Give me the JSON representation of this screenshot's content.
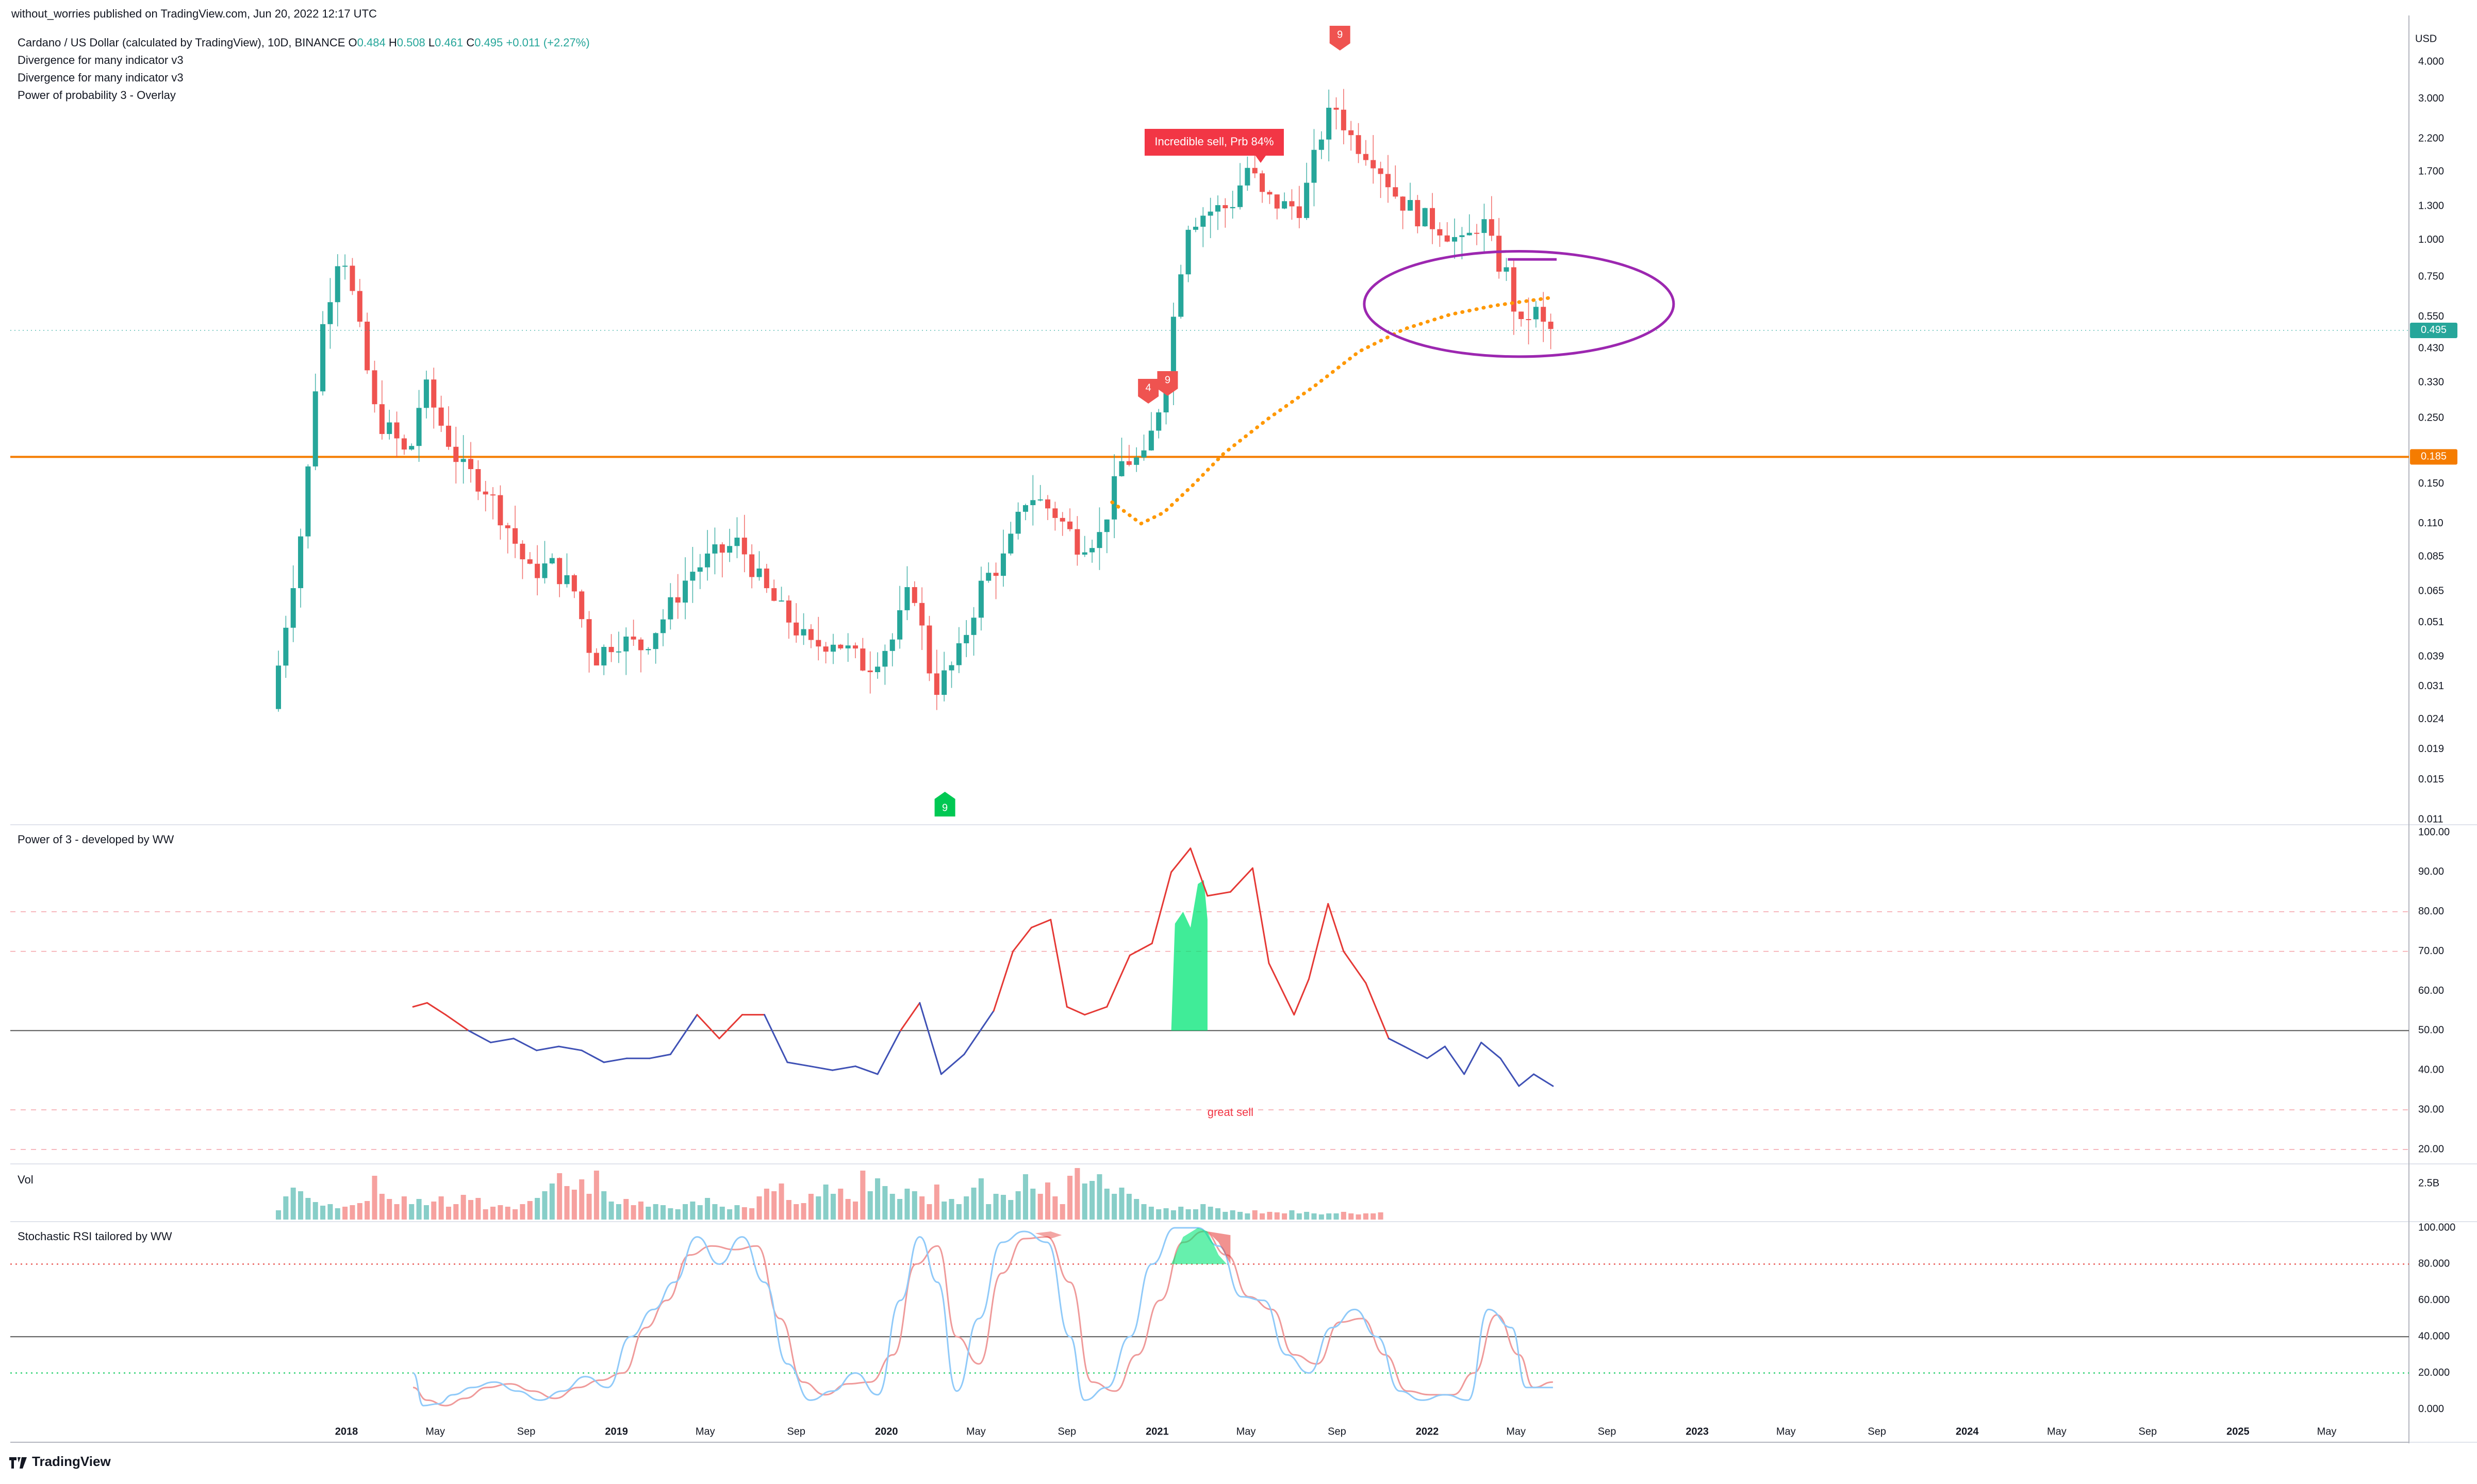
{
  "header": {
    "publisher": "without_worries published on TradingView.com, Jun 20, 2022 12:17 UTC"
  },
  "legend": {
    "symbol": "Cardano / US Dollar (calculated by TradingView), 10D, BINANCE",
    "o_label": "O",
    "o": "0.484",
    "h_label": "H",
    "h": "0.508",
    "l_label": "L",
    "l": "0.461",
    "c_label": "C",
    "c": "0.495",
    "change": "+0.011 (+2.27%)",
    "indicators": [
      "Divergence for many indicator v3",
      "Divergence for many indicator v3",
      "Power of probability 3 - Overlay"
    ]
  },
  "price_axis": {
    "currency": "USD",
    "ticks": [
      "4.000",
      "3.000",
      "2.200",
      "1.700",
      "1.300",
      "1.000",
      "0.750",
      "0.550",
      "0.430",
      "0.330",
      "0.250",
      "0.150",
      "0.110",
      "0.085",
      "0.065",
      "0.051",
      "0.039",
      "0.031",
      "0.024",
      "0.019",
      "0.015",
      "0.011"
    ],
    "last_price": "0.495",
    "level_price": "0.185"
  },
  "annotations": {
    "sell_label": "Incredible sell, Prb 84%",
    "marker_9_top": "9",
    "marker_4": "4",
    "marker_9_mid": "9",
    "marker_9_bottom": "9",
    "great_sell": "great sell"
  },
  "panes": {
    "power_title": "Power of 3 - developed by WW",
    "power_ticks": [
      "100.00",
      "90.00",
      "80.00",
      "70.00",
      "60.00",
      "50.00",
      "40.00",
      "30.00",
      "20.00"
    ],
    "vol_title": "Vol",
    "vol_tick": "2.5B",
    "stoch_title": "Stochastic RSI tailored by WW",
    "stoch_ticks": [
      "100.000",
      "80.000",
      "60.000",
      "40.000",
      "20.000",
      "0.000"
    ]
  },
  "time_axis": {
    "labels": [
      "2018",
      "May",
      "Sep",
      "2019",
      "May",
      "Sep",
      "2020",
      "May",
      "Sep",
      "2021",
      "May",
      "Sep",
      "2022",
      "May",
      "Sep",
      "2023",
      "May",
      "Sep",
      "2024",
      "May",
      "Sep",
      "2025",
      "May"
    ]
  },
  "footer": {
    "brand": "TradingView"
  },
  "colors": {
    "up": "#26a69a",
    "down": "#ef5350",
    "level": "#f57c00",
    "overlay": "#ff9800",
    "circle": "#9c27b0",
    "osc_high": "#e53935",
    "osc_low": "#3f51b5",
    "fill": "#00e676"
  },
  "chart_data": {
    "type": "candlestick",
    "title": "Cardano / US Dollar (calculated by TradingView), 10D, BINANCE",
    "y_scale": "log",
    "ylim": [
      0.011,
      4.0
    ],
    "xlabel": "",
    "ylabel": "USD",
    "x_range": [
      "2017-10-01",
      "2025-07-01"
    ],
    "candle_interval_days": 10,
    "price_path": [
      [
        "2017-10-01",
        0.026
      ],
      [
        "2017-11-15",
        0.12
      ],
      [
        "2017-12-05",
        0.45
      ],
      [
        "2018-01-04",
        1.0
      ],
      [
        "2018-01-25",
        0.55
      ],
      [
        "2018-02-20",
        0.25
      ],
      [
        "2018-03-15",
        0.22
      ],
      [
        "2018-04-05",
        0.18
      ],
      [
        "2018-04-25",
        0.33
      ],
      [
        "2018-05-15",
        0.25
      ],
      [
        "2018-06-15",
        0.17
      ],
      [
        "2018-07-15",
        0.15
      ],
      [
        "2018-08-15",
        0.11
      ],
      [
        "2018-09-15",
        0.075
      ],
      [
        "2018-10-15",
        0.08
      ],
      [
        "2018-11-15",
        0.065
      ],
      [
        "2018-12-10",
        0.038
      ],
      [
        "2019-01-10",
        0.045
      ],
      [
        "2019-02-15",
        0.042
      ],
      [
        "2019-03-20",
        0.055
      ],
      [
        "2019-04-20",
        0.075
      ],
      [
        "2019-05-20",
        0.085
      ],
      [
        "2019-06-25",
        0.095
      ],
      [
        "2019-08-01",
        0.065
      ],
      [
        "2019-09-01",
        0.052
      ],
      [
        "2019-10-01",
        0.042
      ],
      [
        "2019-11-01",
        0.045
      ],
      [
        "2019-12-15",
        0.036
      ],
      [
        "2020-01-20",
        0.045
      ],
      [
        "2020-02-15",
        0.07
      ],
      [
        "2020-03-15",
        0.03
      ],
      [
        "2020-04-15",
        0.038
      ],
      [
        "2020-05-20",
        0.07
      ],
      [
        "2020-06-20",
        0.085
      ],
      [
        "2020-07-20",
        0.14
      ],
      [
        "2020-08-25",
        0.12
      ],
      [
        "2020-09-25",
        0.095
      ],
      [
        "2020-10-25",
        0.1
      ],
      [
        "2020-11-25",
        0.18
      ],
      [
        "2020-12-25",
        0.18
      ],
      [
        "2021-01-20",
        0.32
      ],
      [
        "2021-02-20",
        1.15
      ],
      [
        "2021-03-20",
        1.25
      ],
      [
        "2021-04-20",
        1.3
      ],
      [
        "2021-05-15",
        1.8
      ],
      [
        "2021-06-01",
        1.4
      ],
      [
        "2021-07-01",
        1.3
      ],
      [
        "2021-07-25",
        1.3
      ],
      [
        "2021-08-25",
        2.5
      ],
      [
        "2021-09-10",
        2.8
      ],
      [
        "2021-10-01",
        2.2
      ],
      [
        "2021-11-01",
        1.9
      ],
      [
        "2021-12-01",
        1.4
      ],
      [
        "2022-01-01",
        1.2
      ],
      [
        "2022-02-01",
        1.1
      ],
      [
        "2022-03-01",
        0.95
      ],
      [
        "2022-03-25",
        1.2
      ],
      [
        "2022-04-15",
        0.85
      ],
      [
        "2022-05-01",
        0.75
      ],
      [
        "2022-05-15",
        0.48
      ],
      [
        "2022-05-25",
        0.55
      ],
      [
        "2022-06-05",
        0.58
      ],
      [
        "2022-06-20",
        0.495
      ]
    ],
    "overlay_line": [
      [
        "2020-11-01",
        0.13
      ],
      [
        "2020-12-10",
        0.11
      ],
      [
        "2021-01-10",
        0.12
      ],
      [
        "2021-02-20",
        0.15
      ],
      [
        "2021-04-01",
        0.19
      ],
      [
        "2021-06-01",
        0.25
      ],
      [
        "2021-08-01",
        0.32
      ],
      [
        "2021-10-01",
        0.42
      ],
      [
        "2021-12-01",
        0.5
      ],
      [
        "2022-02-01",
        0.56
      ],
      [
        "2022-04-01",
        0.6
      ],
      [
        "2022-06-20",
        0.64
      ]
    ],
    "horizontal_level": 0.185,
    "power_of_3": {
      "ylim": [
        20,
        100
      ],
      "levels": [
        80,
        70,
        50,
        30,
        20
      ],
      "values": [
        [
          "2018-04-01",
          56
        ],
        [
          "2018-04-20",
          57
        ],
        [
          "2018-05-15",
          54
        ],
        [
          "2018-06-15",
          50
        ],
        [
          "2018-07-15",
          47
        ],
        [
          "2018-08-15",
          48
        ],
        [
          "2018-09-15",
          45
        ],
        [
          "2018-10-15",
          46
        ],
        [
          "2018-11-15",
          45
        ],
        [
          "2018-12-15",
          42
        ],
        [
          "2019-01-15",
          43
        ],
        [
          "2019-02-15",
          43
        ],
        [
          "2019-03-15",
          44
        ],
        [
          "2019-04-20",
          54
        ],
        [
          "2019-05-20",
          48
        ],
        [
          "2019-06-20",
          54
        ],
        [
          "2019-07-20",
          54
        ],
        [
          "2019-08-20",
          42
        ],
        [
          "2019-09-20",
          41
        ],
        [
          "2019-10-20",
          40
        ],
        [
          "2019-11-20",
          41
        ],
        [
          "2019-12-20",
          39
        ],
        [
          "2020-01-20",
          50
        ],
        [
          "2020-02-15",
          57
        ],
        [
          "2020-03-15",
          39
        ],
        [
          "2020-04-15",
          44
        ],
        [
          "2020-05-25",
          55
        ],
        [
          "2020-06-20",
          70
        ],
        [
          "2020-07-15",
          76
        ],
        [
          "2020-08-10",
          78
        ],
        [
          "2020-09-01",
          56
        ],
        [
          "2020-09-25",
          54
        ],
        [
          "2020-10-25",
          56
        ],
        [
          "2020-11-25",
          69
        ],
        [
          "2020-12-25",
          72
        ],
        [
          "2021-01-20",
          90
        ],
        [
          "2021-02-15",
          96
        ],
        [
          "2021-03-10",
          84
        ],
        [
          "2021-04-10",
          85
        ],
        [
          "2021-05-10",
          91
        ],
        [
          "2021-06-01",
          67
        ],
        [
          "2021-07-05",
          54
        ],
        [
          "2021-07-25",
          63
        ],
        [
          "2021-08-20",
          82
        ],
        [
          "2021-09-10",
          70
        ],
        [
          "2021-10-10",
          62
        ],
        [
          "2021-11-10",
          48
        ],
        [
          "2021-12-01",
          46
        ],
        [
          "2022-01-01",
          43
        ],
        [
          "2022-01-25",
          46
        ],
        [
          "2022-02-20",
          39
        ],
        [
          "2022-03-15",
          47
        ],
        [
          "2022-04-10",
          43
        ],
        [
          "2022-05-05",
          36
        ],
        [
          "2022-05-25",
          39
        ],
        [
          "2022-06-20",
          36
        ]
      ]
    },
    "volume": [
      0.18,
      0.45,
      0.62,
      0.55,
      0.42,
      0.34,
      0.27,
      0.3,
      0.22,
      0.25,
      0.28,
      0.32,
      0.36,
      0.85,
      0.5,
      0.4,
      0.3,
      0.45,
      0.3,
      0.4,
      0.28,
      0.35,
      0.45,
      0.25,
      0.3,
      0.48,
      0.38,
      0.42,
      0.2,
      0.25,
      0.28,
      0.25,
      0.2,
      0.3,
      0.36,
      0.42,
      0.55,
      0.7,
      0.9,
      0.65,
      0.58,
      0.78,
      0.5,
      0.95,
      0.55,
      0.35,
      0.3,
      0.4,
      0.28,
      0.35,
      0.25,
      0.3,
      0.28,
      0.22,
      0.2,
      0.3,
      0.35,
      0.28,
      0.42,
      0.3,
      0.25,
      0.2,
      0.28,
      0.24,
      0.22,
      0.45,
      0.6,
      0.55,
      0.7,
      0.38,
      0.3,
      0.32,
      0.5,
      0.45,
      0.68,
      0.5,
      0.6,
      0.4,
      0.35,
      0.95,
      0.55,
      0.8,
      0.65,
      0.5,
      0.4,
      0.6,
      0.55,
      0.45,
      0.3,
      0.68,
      0.35,
      0.4,
      0.3,
      0.45,
      0.62,
      0.8,
      0.3,
      0.5,
      0.48,
      0.38,
      0.55,
      0.88,
      0.6,
      0.5,
      0.72,
      0.45,
      0.3,
      0.85,
      1.0,
      0.7,
      0.75,
      0.88,
      0.6,
      0.5,
      0.62,
      0.5,
      0.4,
      0.3,
      0.25,
      0.2,
      0.22,
      0.18,
      0.25,
      0.2,
      0.2,
      0.3,
      0.25,
      0.22,
      0.15,
      0.18,
      0.15,
      0.12,
      0.18,
      0.12,
      0.15,
      0.14,
      0.12,
      0.18,
      0.12,
      0.15,
      0.12,
      0.1,
      0.12,
      0.12,
      0.15,
      0.12,
      0.1,
      0.12,
      0.12,
      0.14
    ],
    "stoch_rsi": {
      "ylim": [
        0,
        100
      ],
      "levels": [
        80,
        40,
        20
      ],
      "k": [
        [
          "2018-04-01",
          20
        ],
        [
          "2018-04-15",
          2
        ],
        [
          "2018-05-05",
          3
        ],
        [
          "2018-05-25",
          8
        ],
        [
          "2018-06-20",
          12
        ],
        [
          "2018-07-20",
          15
        ],
        [
          "2018-08-20",
          10
        ],
        [
          "2018-09-20",
          5
        ],
        [
          "2018-10-20",
          10
        ],
        [
          "2018-11-20",
          18
        ],
        [
          "2018-12-20",
          12
        ],
        [
          "2019-01-20",
          40
        ],
        [
          "2019-02-20",
          55
        ],
        [
          "2019-03-20",
          70
        ],
        [
          "2019-04-20",
          95
        ],
        [
          "2019-05-20",
          80
        ],
        [
          "2019-06-20",
          95
        ],
        [
          "2019-07-20",
          70
        ],
        [
          "2019-08-20",
          25
        ],
        [
          "2019-09-20",
          5
        ],
        [
          "2019-10-20",
          10
        ],
        [
          "2019-11-20",
          20
        ],
        [
          "2019-12-20",
          8
        ],
        [
          "2020-01-20",
          60
        ],
        [
          "2020-02-15",
          95
        ],
        [
          "2020-03-10",
          70
        ],
        [
          "2020-04-05",
          10
        ],
        [
          "2020-05-05",
          50
        ],
        [
          "2020-06-05",
          92
        ],
        [
          "2020-07-05",
          98
        ],
        [
          "2020-08-05",
          92
        ],
        [
          "2020-09-05",
          40
        ],
        [
          "2020-09-25",
          5
        ],
        [
          "2020-10-25",
          12
        ],
        [
          "2020-11-25",
          40
        ],
        [
          "2020-12-25",
          80
        ],
        [
          "2021-01-25",
          100
        ],
        [
          "2021-02-25",
          100
        ],
        [
          "2021-03-25",
          90
        ],
        [
          "2021-04-25",
          62
        ],
        [
          "2021-05-25",
          60
        ],
        [
          "2021-06-25",
          30
        ],
        [
          "2021-07-25",
          20
        ],
        [
          "2021-08-25",
          45
        ],
        [
          "2021-09-25",
          55
        ],
        [
          "2021-10-25",
          40
        ],
        [
          "2021-11-25",
          10
        ],
        [
          "2021-12-25",
          5
        ],
        [
          "2022-01-25",
          8
        ],
        [
          "2022-02-25",
          5
        ],
        [
          "2022-03-25",
          55
        ],
        [
          "2022-04-25",
          45
        ],
        [
          "2022-05-15",
          12
        ],
        [
          "2022-06-20",
          12
        ]
      ],
      "d": [
        [
          "2018-04-01",
          12
        ],
        [
          "2018-04-20",
          5
        ],
        [
          "2018-05-15",
          2
        ],
        [
          "2018-06-10",
          6
        ],
        [
          "2018-07-10",
          12
        ],
        [
          "2018-08-10",
          14
        ],
        [
          "2018-09-10",
          10
        ],
        [
          "2018-10-10",
          6
        ],
        [
          "2018-11-10",
          12
        ],
        [
          "2018-12-10",
          16
        ],
        [
          "2019-01-10",
          20
        ],
        [
          "2019-02-10",
          45
        ],
        [
          "2019-03-10",
          60
        ],
        [
          "2019-04-10",
          85
        ],
        [
          "2019-05-10",
          90
        ],
        [
          "2019-06-10",
          88
        ],
        [
          "2019-07-10",
          90
        ],
        [
          "2019-08-10",
          50
        ],
        [
          "2019-09-10",
          15
        ],
        [
          "2019-10-10",
          8
        ],
        [
          "2019-11-10",
          14
        ],
        [
          "2019-12-10",
          15
        ],
        [
          "2020-01-10",
          30
        ],
        [
          "2020-02-10",
          80
        ],
        [
          "2020-03-10",
          90
        ],
        [
          "2020-04-05",
          40
        ],
        [
          "2020-05-05",
          25
        ],
        [
          "2020-06-05",
          75
        ],
        [
          "2020-07-05",
          94
        ],
        [
          "2020-08-05",
          95
        ],
        [
          "2020-09-05",
          70
        ],
        [
          "2020-10-05",
          15
        ],
        [
          "2020-11-05",
          10
        ],
        [
          "2020-12-05",
          30
        ],
        [
          "2021-01-05",
          60
        ],
        [
          "2021-02-05",
          92
        ],
        [
          "2021-03-05",
          98
        ],
        [
          "2021-04-05",
          85
        ],
        [
          "2021-05-05",
          62
        ],
        [
          "2021-06-05",
          55
        ],
        [
          "2021-07-05",
          30
        ],
        [
          "2021-08-05",
          25
        ],
        [
          "2021-09-05",
          48
        ],
        [
          "2021-10-05",
          50
        ],
        [
          "2021-11-05",
          30
        ],
        [
          "2021-12-05",
          10
        ],
        [
          "2022-01-05",
          8
        ],
        [
          "2022-02-05",
          8
        ],
        [
          "2022-03-05",
          20
        ],
        [
          "2022-04-05",
          52
        ],
        [
          "2022-05-05",
          30
        ],
        [
          "2022-05-25",
          12
        ],
        [
          "2022-06-20",
          15
        ]
      ]
    }
  }
}
